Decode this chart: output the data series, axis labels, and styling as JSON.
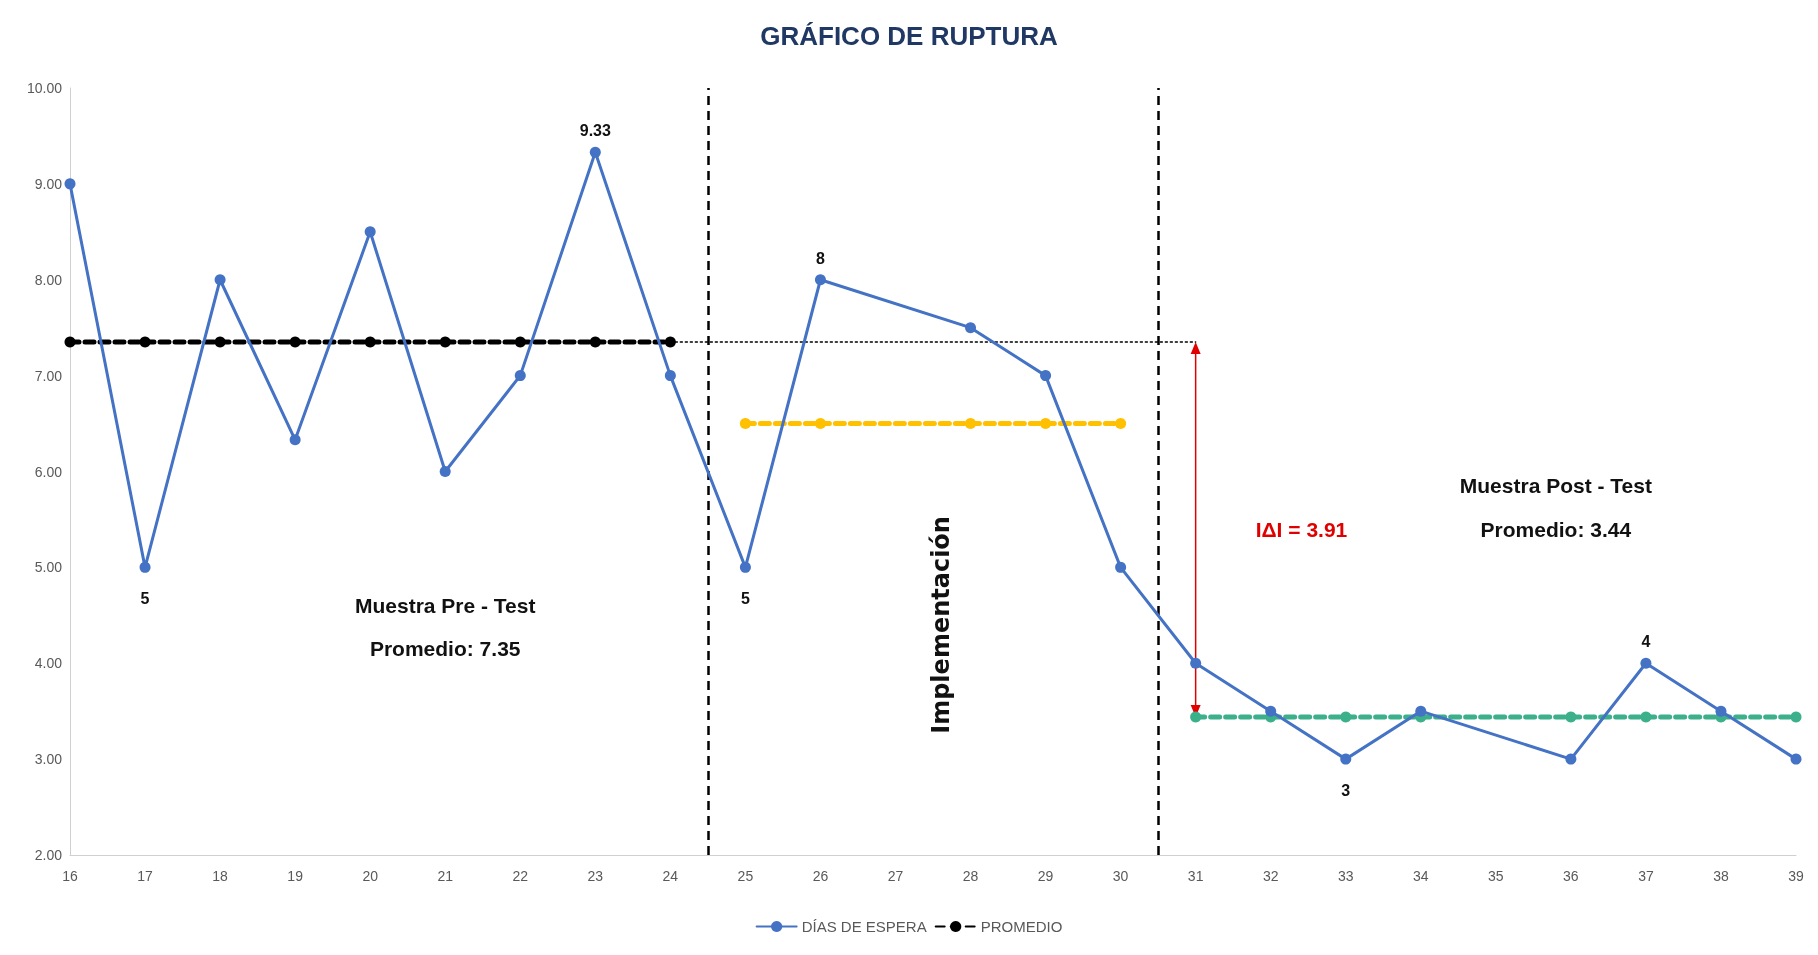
{
  "chart_data": {
    "type": "line",
    "title": "GRÁFICO DE RUPTURA",
    "xlim": [
      16,
      39
    ],
    "xticks": [
      16,
      17,
      18,
      19,
      20,
      21,
      22,
      23,
      24,
      25,
      26,
      27,
      28,
      29,
      30,
      31,
      32,
      33,
      34,
      35,
      36,
      37,
      38,
      39
    ],
    "ylim": [
      2,
      10
    ],
    "yticks": [
      {
        "value": 2,
        "label": "2.00"
      },
      {
        "value": 3,
        "label": "3.00"
      },
      {
        "value": 4,
        "label": "4.00"
      },
      {
        "value": 5,
        "label": "5.00"
      },
      {
        "value": 6,
        "label": "6.00"
      },
      {
        "value": 7,
        "label": "7.00"
      },
      {
        "value": 8,
        "label": "8.00"
      },
      {
        "value": 9,
        "label": "9.00"
      },
      {
        "value": 10,
        "label": "10.00"
      }
    ],
    "grid": false,
    "legend": "bottom",
    "marker": "circle",
    "series": [
      {
        "name": "DÍAS DE ESPERA",
        "color": "#4472c4",
        "line_style": "solid",
        "x": [
          16,
          17,
          18,
          19,
          20,
          21,
          22,
          23,
          24,
          25,
          26,
          27,
          28,
          29,
          30,
          31,
          32,
          33,
          34,
          35,
          36,
          37,
          38,
          39
        ],
        "values": [
          9,
          5,
          8,
          6.33,
          8.5,
          6,
          7,
          9.33,
          7,
          5,
          8,
          null,
          7.5,
          7,
          5,
          4,
          3.5,
          3,
          3.5,
          null,
          3,
          4,
          3.5,
          3
        ],
        "value_labels": [
          null,
          "5",
          null,
          null,
          null,
          null,
          null,
          "9.33",
          null,
          "5",
          "8",
          null,
          null,
          null,
          null,
          null,
          null,
          "3",
          null,
          null,
          null,
          "4",
          null,
          null
        ]
      },
      {
        "name": "PROMEDIO",
        "color": "#000000",
        "line_style": "dashed",
        "x": [
          16,
          17,
          18,
          19,
          20,
          21,
          22,
          23,
          24
        ],
        "values": [
          7.35,
          7.35,
          7.35,
          7.35,
          7.35,
          7.35,
          7.35,
          7.35,
          7.35
        ]
      },
      {
        "color": "#000000",
        "line_style": "dotted",
        "marker": "none",
        "x": [
          24,
          31
        ],
        "values": [
          7.35,
          7.35
        ]
      },
      {
        "color": "#ffc000",
        "line_style": "dashed",
        "x": [
          25,
          26,
          28,
          29,
          30
        ],
        "values": [
          6.5,
          6.5,
          6.5,
          6.5,
          6.5
        ]
      },
      {
        "color": "#3cb08a",
        "line_style": "dashed",
        "x": [
          31,
          32,
          33,
          34,
          36,
          37,
          38,
          39
        ],
        "values": [
          3.44,
          3.44,
          3.44,
          3.44,
          3.44,
          3.44,
          3.44,
          3.44
        ]
      }
    ],
    "ref_lines": [
      {
        "axis": "x",
        "value": 24.5,
        "color": "#000000",
        "line_style": "dashed"
      },
      {
        "axis": "x",
        "value": 30.5,
        "color": "#000000",
        "line_style": "dashed"
      }
    ],
    "annotations": [
      "Muestra Pre - Test",
      "Promedio: 7.35",
      "Implementación",
      "IΔI = 3.91",
      "Muestra Post - Test",
      "Promedio: 3.44"
    ]
  }
}
